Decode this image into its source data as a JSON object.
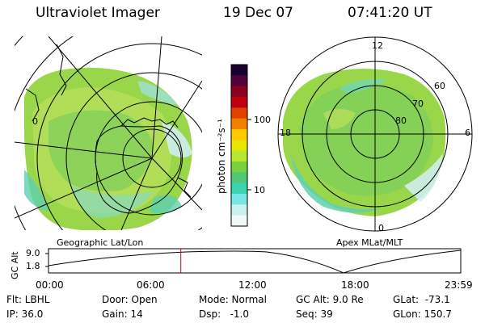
{
  "header": {
    "instrument": "Ultraviolet Imager",
    "date": "19 Dec 07",
    "time": "07:41:20 UT"
  },
  "panels": {
    "geographic_label": "Geographic Lat/Lon",
    "apex_label": "Apex MLat/MLT"
  },
  "geo_map": {
    "lat_label": "0"
  },
  "mlt_plot": {
    "mlt_labels": [
      "12",
      "18",
      "6",
      "0"
    ],
    "mlat_labels": [
      "60",
      "70",
      "80"
    ]
  },
  "colorbar": {
    "unit_label": "photon cm⁻²s⁻¹",
    "tick_labels": [
      "100",
      "10"
    ],
    "colors": [
      "#1a0030",
      "#55003a",
      "#8a0020",
      "#c00010",
      "#e04000",
      "#f08000",
      "#ffc800",
      "#e6e600",
      "#b4e632",
      "#78d23c",
      "#50c878",
      "#3cd2b4",
      "#78e6e6",
      "#c8f0f0",
      "#f0f8f8"
    ]
  },
  "altitude_plot": {
    "axis_label": "GC Alt",
    "y_ticks": [
      "9.0",
      "1.8"
    ],
    "time_ticks": [
      "00:00",
      "06:00",
      "12:00",
      "18:00",
      "23:59"
    ],
    "current_marker_fraction": 0.321,
    "marker_color": "#e00000"
  },
  "footer": {
    "flt": "Flt: LBHL",
    "ip": "IP: 36.0",
    "door": "Door: Open",
    "gain": "Gain: 14",
    "mode": "Mode: Normal",
    "dsp": "Dsp:   -1.0",
    "gc_alt": "GC Alt: 9.0 Re",
    "seq": "Seq: 39",
    "glat": "GLat:  -73.1",
    "glon": "GLon: 150.7"
  }
}
